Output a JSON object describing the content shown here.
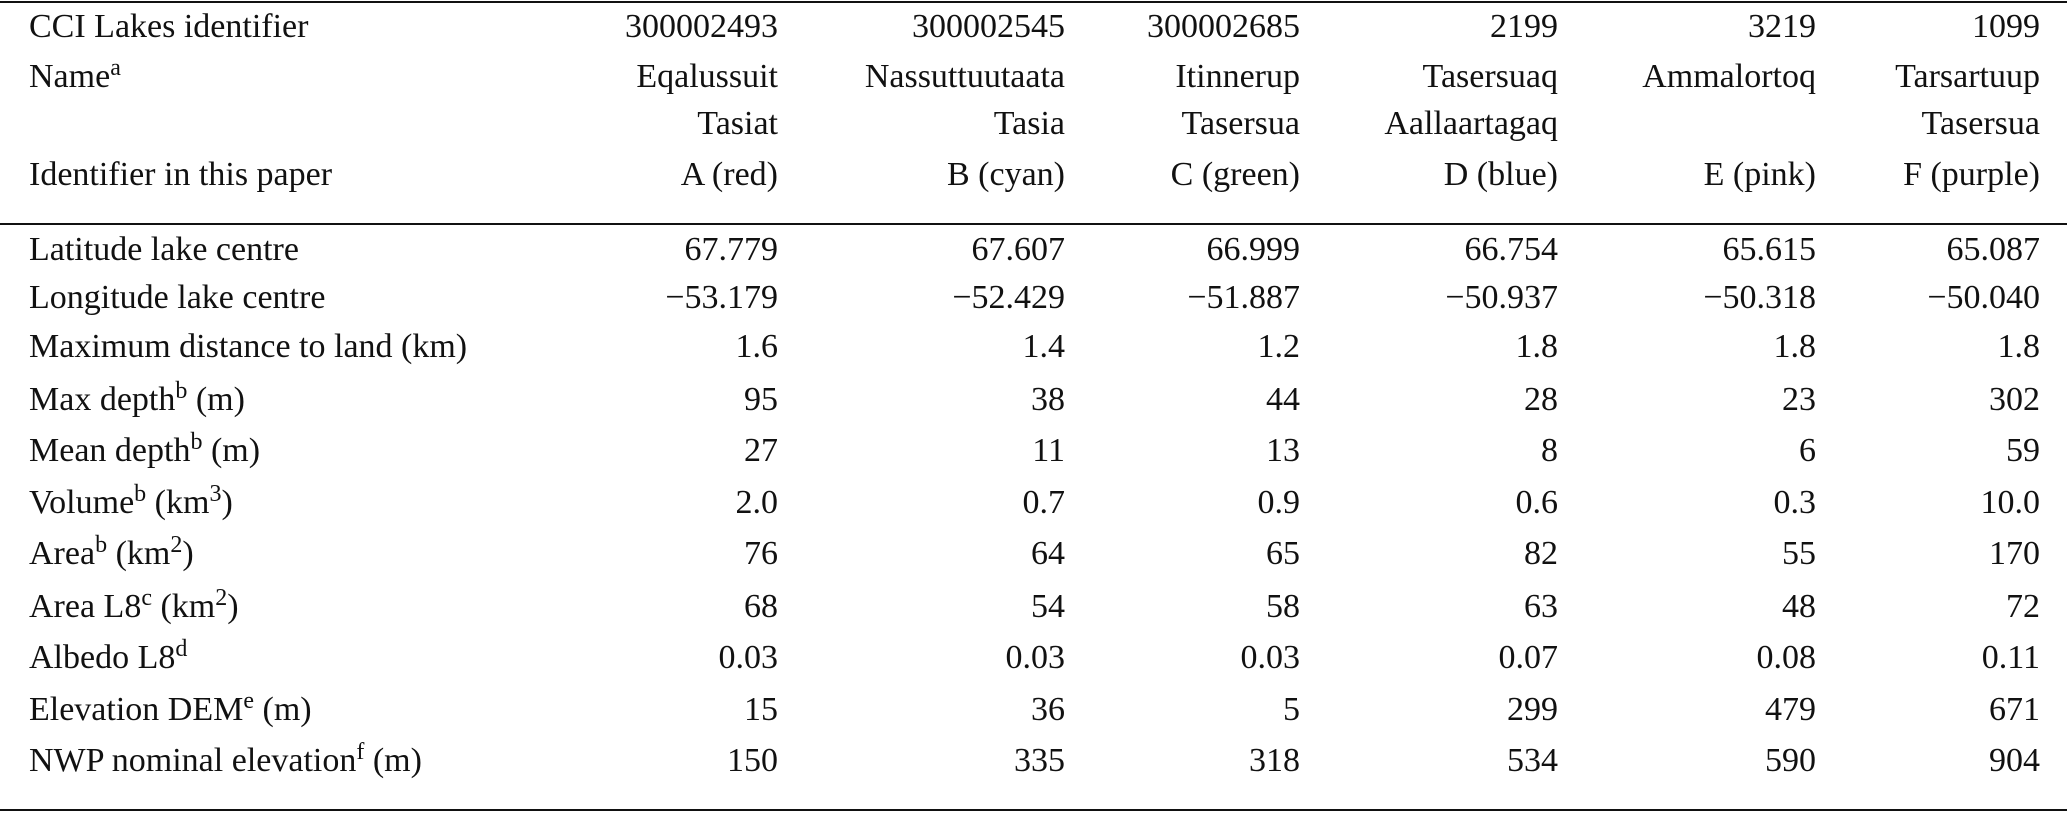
{
  "table": {
    "header": {
      "labels": {
        "identifier": "CCI Lakes identifier",
        "name": [
          {
            "text": "Name"
          },
          {
            "text": "a",
            "sup": true
          }
        ],
        "paper_id": "Identifier in this paper"
      },
      "columns": [
        {
          "identifier": "300002493",
          "name": [
            "Eqalussuit",
            "Tasiat"
          ],
          "paper_id": "A (red)"
        },
        {
          "identifier": "300002545",
          "name": [
            "Nassuttuutaata",
            "Tasia"
          ],
          "paper_id": "B (cyan)"
        },
        {
          "identifier": "300002685",
          "name": [
            "Itinnerup",
            "Tasersua"
          ],
          "paper_id": "C (green)"
        },
        {
          "identifier": "2199",
          "name": [
            "Tasersuaq",
            "Aallaartagaq"
          ],
          "paper_id": "D (blue)"
        },
        {
          "identifier": "3219",
          "name": [
            "Ammalortoq"
          ],
          "paper_id": "E (pink)"
        },
        {
          "identifier": "1099",
          "name": [
            "Tarsartuup",
            "Tasersua"
          ],
          "paper_id": "F (purple)"
        }
      ]
    },
    "rows": [
      {
        "label": [
          {
            "text": "Latitude lake centre"
          }
        ],
        "cells": [
          "67.779",
          "67.607",
          "66.999",
          "66.754",
          "65.615",
          "65.087"
        ]
      },
      {
        "label": [
          {
            "text": "Longitude lake centre"
          }
        ],
        "cells": [
          "−53.179",
          "−52.429",
          "−51.887",
          "−50.937",
          "−50.318",
          "−50.040"
        ]
      },
      {
        "label": [
          {
            "text": "Maximum distance to land (km)"
          }
        ],
        "cells": [
          "1.6",
          "1.4",
          "1.2",
          "1.8",
          "1.8",
          "1.8"
        ]
      },
      {
        "label": [
          {
            "text": "Max depth"
          },
          {
            "text": "b",
            "sup": true
          },
          {
            "text": " (m)"
          }
        ],
        "cells": [
          "95",
          "38",
          "44",
          "28",
          "23",
          "302"
        ]
      },
      {
        "label": [
          {
            "text": "Mean depth"
          },
          {
            "text": "b",
            "sup": true
          },
          {
            "text": " (m)"
          }
        ],
        "cells": [
          "27",
          "11",
          "13",
          "8",
          "6",
          "59"
        ]
      },
      {
        "label": [
          {
            "text": "Volume"
          },
          {
            "text": "b",
            "sup": true
          },
          {
            "text": " (km"
          },
          {
            "text": "3",
            "sup": true
          },
          {
            "text": ")"
          }
        ],
        "cells": [
          "2.0",
          "0.7",
          "0.9",
          "0.6",
          "0.3",
          "10.0"
        ]
      },
      {
        "label": [
          {
            "text": "Area"
          },
          {
            "text": "b",
            "sup": true
          },
          {
            "text": " (km"
          },
          {
            "text": "2",
            "sup": true
          },
          {
            "text": ")"
          }
        ],
        "cells": [
          "76",
          "64",
          "65",
          "82",
          "55",
          "170"
        ]
      },
      {
        "label": [
          {
            "text": "Area L8"
          },
          {
            "text": "c",
            "sup": true
          },
          {
            "text": " (km"
          },
          {
            "text": "2",
            "sup": true
          },
          {
            "text": ")"
          }
        ],
        "cells": [
          "68",
          "54",
          "58",
          "63",
          "48",
          "72"
        ]
      },
      {
        "label": [
          {
            "text": "Albedo L8"
          },
          {
            "text": "d",
            "sup": true
          }
        ],
        "cells": [
          "0.03",
          "0.03",
          "0.03",
          "0.07",
          "0.08",
          "0.11"
        ]
      },
      {
        "label": [
          {
            "text": "Elevation DEM"
          },
          {
            "text": "e",
            "sup": true
          },
          {
            "text": " (m)"
          }
        ],
        "cells": [
          "15",
          "36",
          "5",
          "299",
          "479",
          "671"
        ]
      },
      {
        "label": [
          {
            "text": "NWP nominal elevation"
          },
          {
            "text": "f",
            "sup": true
          },
          {
            "text": " (m)"
          }
        ],
        "cells": [
          "150",
          "335",
          "318",
          "534",
          "590",
          "904"
        ]
      }
    ]
  }
}
